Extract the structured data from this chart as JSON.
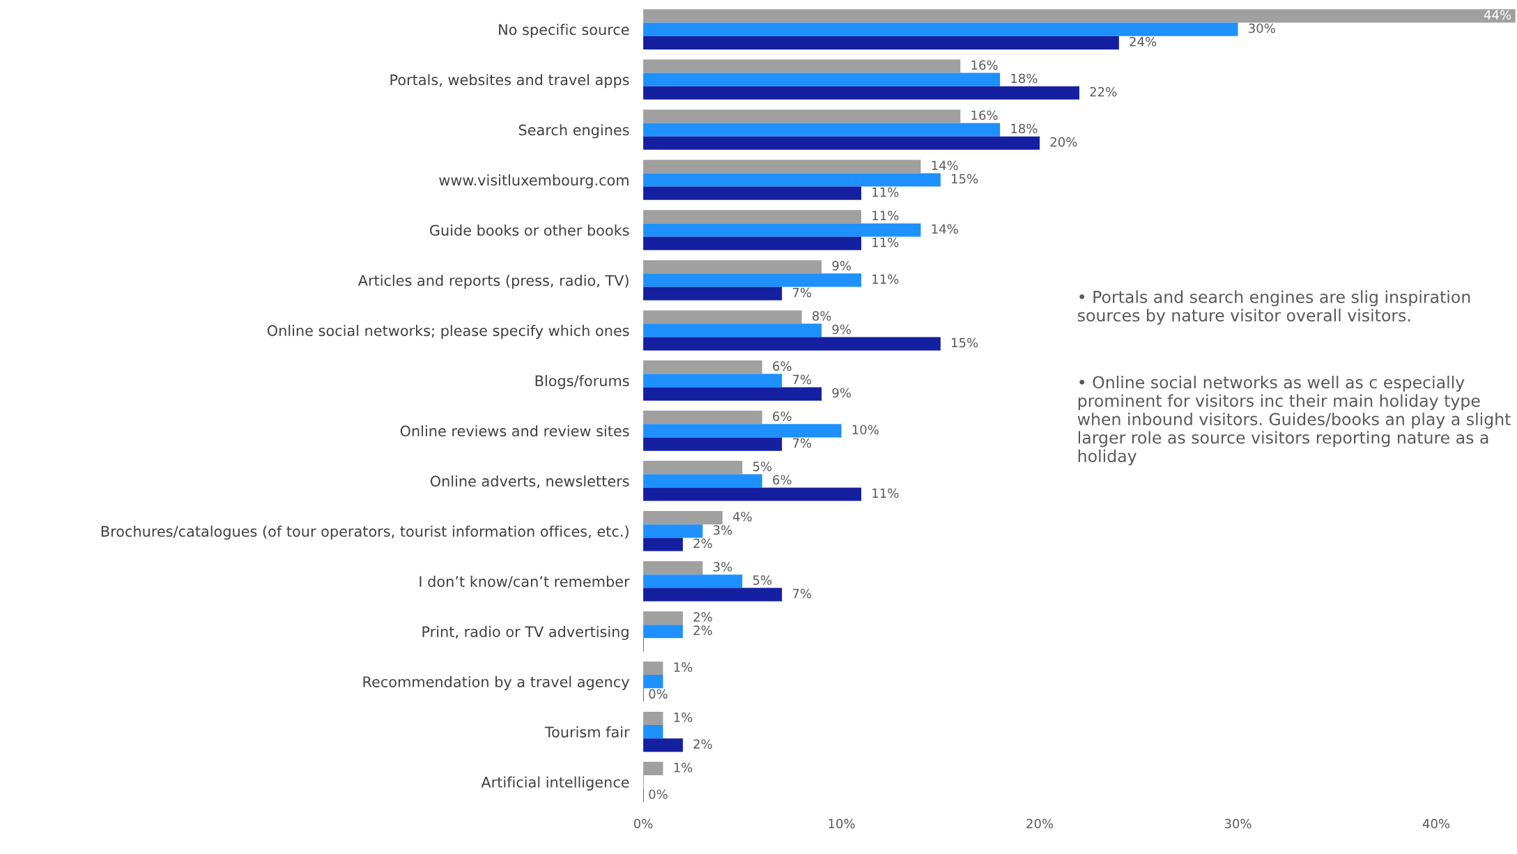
{
  "chart_data": {
    "type": "bar",
    "orientation": "horizontal",
    "categories": [
      "No specific source",
      "Portals, websites and travel apps",
      "Search engines",
      "www.visitluxembourg.com",
      "Guide books or other books",
      "Articles and reports (press, radio, TV)",
      "Online social networks; please specify which ones",
      "Blogs/forums",
      "Online reviews and review sites",
      "Online adverts, newsletters",
      "Brochures/catalogues (of tour operators, tourist information offices, etc.)",
      "I don’t know/can’t remember",
      "Print, radio or TV advertising",
      "Recommendation by a travel agency",
      "Tourism fair",
      "Artificial intelligence"
    ],
    "series": [
      {
        "color": "#a0a0a0",
        "values": [
          44,
          16,
          16,
          14,
          11,
          9,
          8,
          6,
          6,
          5,
          4,
          3,
          2,
          1,
          1,
          1
        ],
        "value_labels": [
          "44%",
          "16%",
          "16%",
          "14%",
          "11%",
          "9%",
          "8%",
          "6%",
          "6%",
          "5%",
          "4%",
          "3%",
          "2%",
          "1%",
          "1%",
          "1%"
        ]
      },
      {
        "color": "#1e90ff",
        "values": [
          30,
          18,
          18,
          15,
          14,
          11,
          9,
          7,
          10,
          6,
          3,
          5,
          2,
          1,
          1,
          0
        ],
        "value_labels": [
          "30%",
          "18%",
          "18%",
          "15%",
          "14%",
          "11%",
          "9%",
          "7%",
          "10%",
          "6%",
          "3%",
          "5%",
          "2%",
          null,
          null,
          null
        ]
      },
      {
        "color": "#1420a0",
        "values": [
          24,
          22,
          20,
          11,
          11,
          7,
          15,
          9,
          7,
          11,
          2,
          7,
          0,
          0,
          2,
          0
        ],
        "value_labels": [
          "24%",
          "22%",
          "20%",
          "11%",
          "11%",
          "7%",
          "15%",
          "9%",
          "7%",
          "11%",
          "2%",
          "7%",
          null,
          "0%",
          "2%",
          "0%"
        ]
      }
    ],
    "xlim": [
      0,
      44
    ],
    "xticks": [
      {
        "value": 0,
        "label": "0%"
      },
      {
        "value": 10,
        "label": "10%"
      },
      {
        "value": 20,
        "label": "20%"
      },
      {
        "value": 30,
        "label": "30%"
      },
      {
        "value": 40,
        "label": "40%"
      }
    ],
    "grid": false,
    "legend": false,
    "annotations": [
      "• Portals and search engines are slig inspiration sources by nature visitor overall visitors.",
      "• Online social networks as well as c especially prominent for visitors inc their main holiday type when inbound visitors. Guides/books an play a slight larger role as source visitors reporting nature as a holiday"
    ]
  }
}
